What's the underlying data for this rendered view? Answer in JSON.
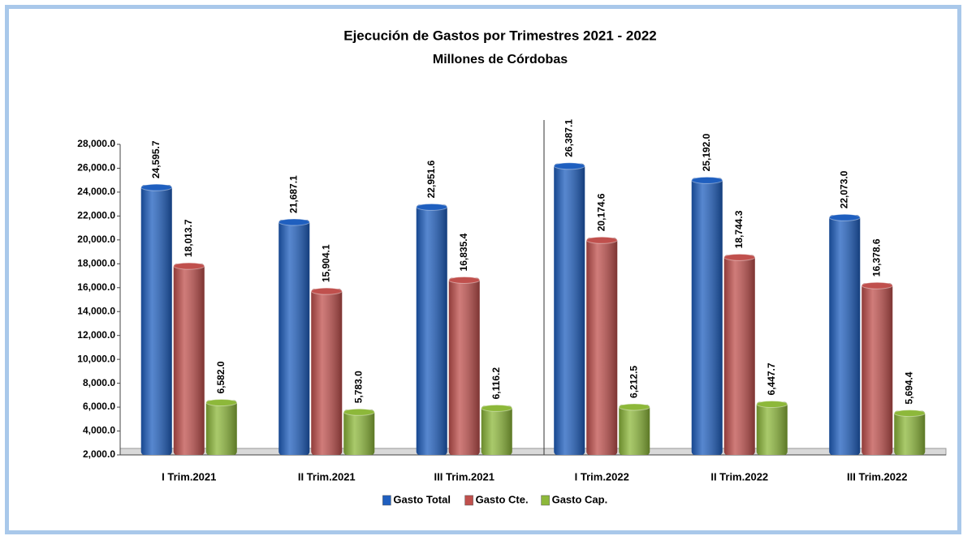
{
  "chart_data": {
    "type": "bar",
    "title": "Ejecución de  Gastos por Trimestres 2021 - 2022",
    "subtitle": "Millones de Córdobas",
    "categories": [
      "I Trim.2021",
      "II Trim.2021",
      "III Trim.2021",
      "I Trim.2022",
      "II Trim.2022",
      "III Trim.2022"
    ],
    "series": [
      {
        "name": "Gasto Total",
        "color": "#1f5fbf",
        "values": [
          24595.7,
          21687.1,
          22951.6,
          26387.1,
          25192.0,
          22073.0
        ],
        "value_labels": [
          "24,595.7",
          "21,687.1",
          "22,951.6",
          "26,387.1",
          "25,192.0",
          "22,073.0"
        ]
      },
      {
        "name": "Gasto Cte.",
        "color": "#c0504d",
        "values": [
          18013.7,
          15904.1,
          16835.4,
          20174.6,
          18744.3,
          16378.6
        ],
        "value_labels": [
          "18,013.7",
          "15,904.1",
          "16,835.4",
          "20,174.6",
          "18,744.3",
          "16,378.6"
        ]
      },
      {
        "name": "Gasto Cap.",
        "color": "#8db83a",
        "values": [
          6582.0,
          5783.0,
          6116.2,
          6212.5,
          6447.7,
          5694.4
        ],
        "value_labels": [
          "6,582.0",
          "5,783.0",
          "6,116.2",
          "6,212.5",
          "6,447.7",
          "5,694.4"
        ]
      }
    ],
    "ylim": [
      2000,
      28000
    ],
    "yticks": [
      {
        "value": 2000,
        "label": "2,000.0"
      },
      {
        "value": 4000,
        "label": "4,000.0"
      },
      {
        "value": 6000,
        "label": "6,000.0"
      },
      {
        "value": 8000,
        "label": "8,000.0"
      },
      {
        "value": 10000,
        "label": "10,000.0"
      },
      {
        "value": 12000,
        "label": "12,000.0"
      },
      {
        "value": 14000,
        "label": "14,000.0"
      },
      {
        "value": 16000,
        "label": "16,000.0"
      },
      {
        "value": 18000,
        "label": "18,000.0"
      },
      {
        "value": 20000,
        "label": "20,000.0"
      },
      {
        "value": 22000,
        "label": "22,000.0"
      },
      {
        "value": 24000,
        "label": "24,000.0"
      },
      {
        "value": 26000,
        "label": "26,000.0"
      },
      {
        "value": 28000,
        "label": "28,000.0"
      }
    ],
    "grid": false,
    "legend": "bottom"
  }
}
